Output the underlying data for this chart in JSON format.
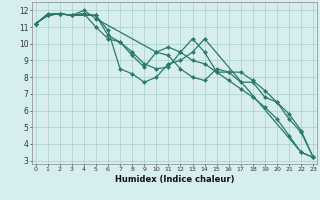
{
  "bg_color": "#d6eeee",
  "grid_color": "#aacccc",
  "line_color": "#2a7a6a",
  "marker": "D",
  "markersize": 2.0,
  "linewidth": 0.9,
  "xlabel": "Humidex (Indice chaleur)",
  "xlim": [
    -0.3,
    23.3
  ],
  "ylim": [
    2.8,
    12.5
  ],
  "yticks": [
    3,
    4,
    5,
    6,
    7,
    8,
    9,
    10,
    11,
    12
  ],
  "xticks": [
    0,
    1,
    2,
    3,
    4,
    5,
    6,
    7,
    8,
    9,
    10,
    11,
    12,
    13,
    14,
    15,
    16,
    17,
    18,
    19,
    20,
    21,
    22,
    23
  ],
  "series": [
    {
      "x": [
        0,
        1,
        2,
        3,
        4,
        5,
        6,
        7,
        8,
        9,
        10,
        11,
        12,
        13,
        14,
        15,
        16,
        17,
        18,
        19,
        20,
        21,
        22,
        23
      ],
      "y": [
        11.2,
        11.7,
        11.8,
        11.7,
        11.8,
        11.7,
        10.5,
        10.1,
        9.5,
        8.8,
        8.5,
        8.6,
        9.5,
        10.3,
        9.5,
        8.3,
        8.3,
        7.7,
        7.7,
        6.8,
        6.5,
        5.5,
        4.7,
        3.2
      ]
    },
    {
      "x": [
        0,
        1,
        2,
        3,
        4,
        5,
        6,
        7,
        8,
        9,
        10,
        11,
        12,
        13,
        14,
        15,
        16,
        17,
        18,
        19,
        20,
        21,
        22,
        23
      ],
      "y": [
        11.2,
        11.7,
        11.8,
        11.7,
        11.8,
        11.0,
        10.3,
        10.1,
        9.3,
        8.6,
        9.5,
        9.8,
        9.5,
        9.0,
        8.8,
        8.3,
        7.8,
        7.3,
        6.8,
        6.2,
        5.5,
        4.5,
        3.5,
        3.2
      ]
    },
    {
      "x": [
        0,
        1,
        2,
        3,
        4,
        5,
        10,
        11,
        12,
        13,
        14,
        15,
        16,
        17,
        18,
        19,
        20,
        21,
        22,
        23
      ],
      "y": [
        11.2,
        11.7,
        11.8,
        11.7,
        12.0,
        11.5,
        9.5,
        9.3,
        8.5,
        8.0,
        7.8,
        8.5,
        8.3,
        8.3,
        7.8,
        7.2,
        6.5,
        5.8,
        4.8,
        3.2
      ]
    },
    {
      "x": [
        0,
        1,
        2,
        3,
        5,
        6,
        7,
        8,
        9,
        10,
        11,
        12,
        13,
        14,
        22,
        23
      ],
      "y": [
        11.2,
        11.8,
        11.8,
        11.7,
        11.7,
        10.8,
        8.5,
        8.2,
        7.7,
        8.0,
        8.8,
        9.0,
        9.5,
        10.3,
        3.5,
        3.2
      ]
    }
  ]
}
